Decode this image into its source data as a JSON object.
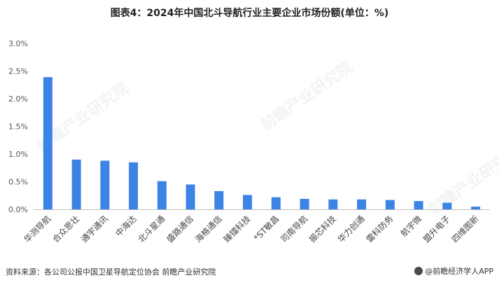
{
  "title": "图表4：2024年中国北斗导航行业主要企业市场份额(单位：%)",
  "source": "资料来源：各公司公报中国卫星导航定位协会 前瞻产业研究院",
  "brand": "@前瞻经济学人APP",
  "watermark": "前瞻产业研究院",
  "chart_data": {
    "type": "bar",
    "categories": [
      "华测导航",
      "合众思壮",
      "通宇通讯",
      "中海达",
      "北斗星通",
      "盛路通信",
      "海格通信",
      "臻镭科技",
      "*ST敏昌",
      "司南导航",
      "振芯科技",
      "华力创通",
      "雷科防务",
      "航宇微",
      "盟升电子",
      "四维图新"
    ],
    "values": [
      2.39,
      0.9,
      0.88,
      0.85,
      0.51,
      0.45,
      0.33,
      0.26,
      0.22,
      0.19,
      0.18,
      0.18,
      0.17,
      0.15,
      0.12,
      0.05
    ],
    "ylim": [
      0,
      3.0
    ],
    "yticks": [
      "0.0%",
      "0.5%",
      "1.0%",
      "1.5%",
      "2.0%",
      "2.5%",
      "3.0%"
    ],
    "grid": false,
    "legend": "none",
    "bar_color": "#3c83e6"
  }
}
